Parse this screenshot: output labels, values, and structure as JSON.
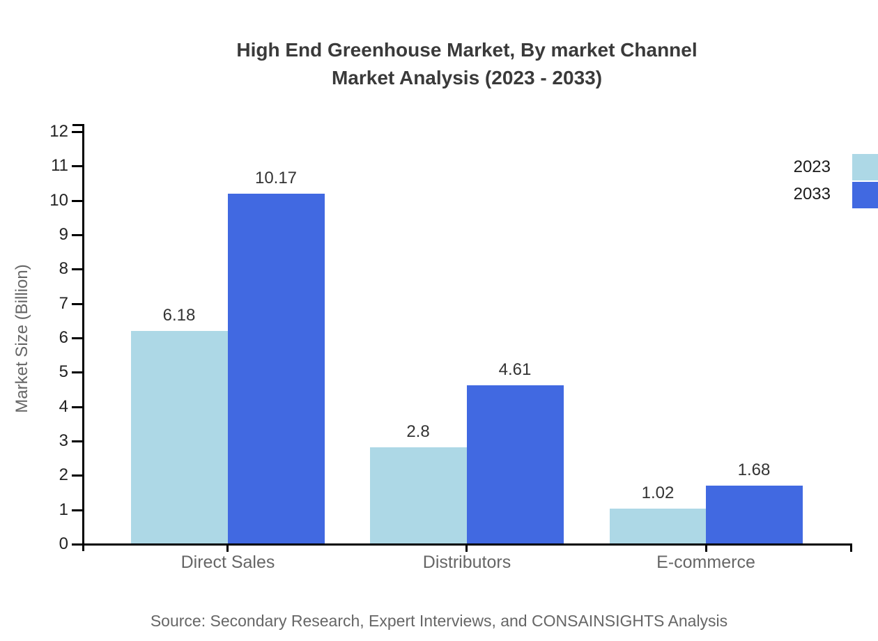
{
  "title": {
    "line1": "High End Greenhouse Market, By market Channel",
    "line2": "Market Analysis (2023 - 2033)"
  },
  "chart_data": {
    "type": "bar",
    "title": "High End Greenhouse Market, By market Channel Market Analysis (2023 - 2033)",
    "categories": [
      "Direct Sales",
      "Distributors",
      "E-commerce"
    ],
    "series": [
      {
        "name": "2023",
        "color": "#ADD8E6",
        "values": [
          6.18,
          2.8,
          1.02
        ],
        "labels": [
          "6.18",
          "2.8",
          "1.02"
        ]
      },
      {
        "name": "2033",
        "color": "#4169E1",
        "values": [
          10.17,
          4.61,
          1.68
        ],
        "labels": [
          "10.17",
          "4.61",
          "1.68"
        ]
      }
    ],
    "xlabel": "",
    "ylabel": "Market Size (Billion)",
    "ylim": [
      0,
      12
    ],
    "ytick_step": 1,
    "grid": false,
    "legend_position": "top-right",
    "bar_value_labels": true
  },
  "legend": {
    "items": [
      {
        "label": "2023",
        "color": "#ADD8E6"
      },
      {
        "label": "2033",
        "color": "#4169E1"
      }
    ]
  },
  "source": {
    "text": "Source: Secondary Research, Expert Interviews, and CONSAINSIGHTS Analysis"
  },
  "colors": {
    "series_2023": "#ADD8E6",
    "series_2033": "#4169E1",
    "axis": "#000000",
    "tick_label": "#222222",
    "category_label": "#666666",
    "value_label": "#333333",
    "title": "#3A3A3A",
    "source": "#666666"
  }
}
